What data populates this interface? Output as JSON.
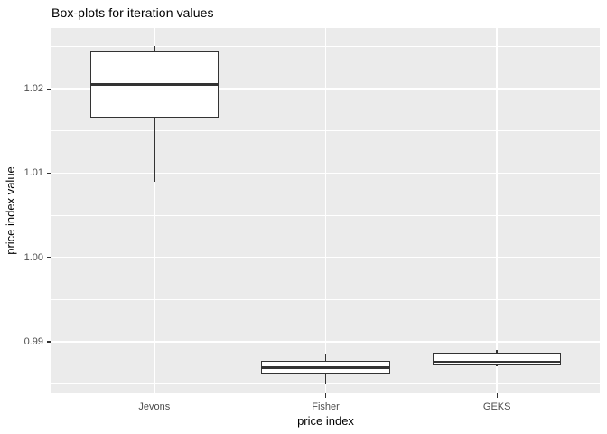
{
  "title": "Box-plots for iteration values",
  "chart_data": {
    "type": "boxplot",
    "title": "Box-plots for iteration values",
    "xlabel": "price index",
    "ylabel": "price index value",
    "categories": [
      "Jevons",
      "Fisher",
      "GEKS"
    ],
    "series": [
      {
        "name": "Jevons",
        "whisker_low": 1.009,
        "q1": 1.0166,
        "median": 1.0205,
        "q3": 1.0245,
        "whisker_high": 1.0251
      },
      {
        "name": "Fisher",
        "whisker_low": 0.985,
        "q1": 0.9861,
        "median": 0.987,
        "q3": 0.9878,
        "whisker_high": 0.9886
      },
      {
        "name": "GEKS",
        "whisker_low": 0.9871,
        "q1": 0.9872,
        "median": 0.9876,
        "q3": 0.9887,
        "whisker_high": 0.989
      }
    ],
    "y_ticks": [
      0.99,
      1.0,
      1.01,
      1.02
    ],
    "y_tick_labels": [
      "0.99",
      "1.00",
      "1.01",
      "1.02"
    ],
    "y_minor_ticks": [
      0.985,
      0.995,
      1.005,
      1.015,
      1.025
    ],
    "ylim": [
      0.9839,
      1.0272
    ],
    "grid": true,
    "legend": false,
    "box_width_fraction": 0.75
  },
  "colors": {
    "panel_bg": "#EBEBEB",
    "grid_major": "#FFFFFF",
    "grid_minor": "#FFFFFF",
    "box_stroke": "#333333",
    "box_fill": "#FFFFFF",
    "tick_mark": "#333333",
    "tick_label": "#4D4D4D",
    "axis_title": "#000000",
    "title": "#000000"
  }
}
